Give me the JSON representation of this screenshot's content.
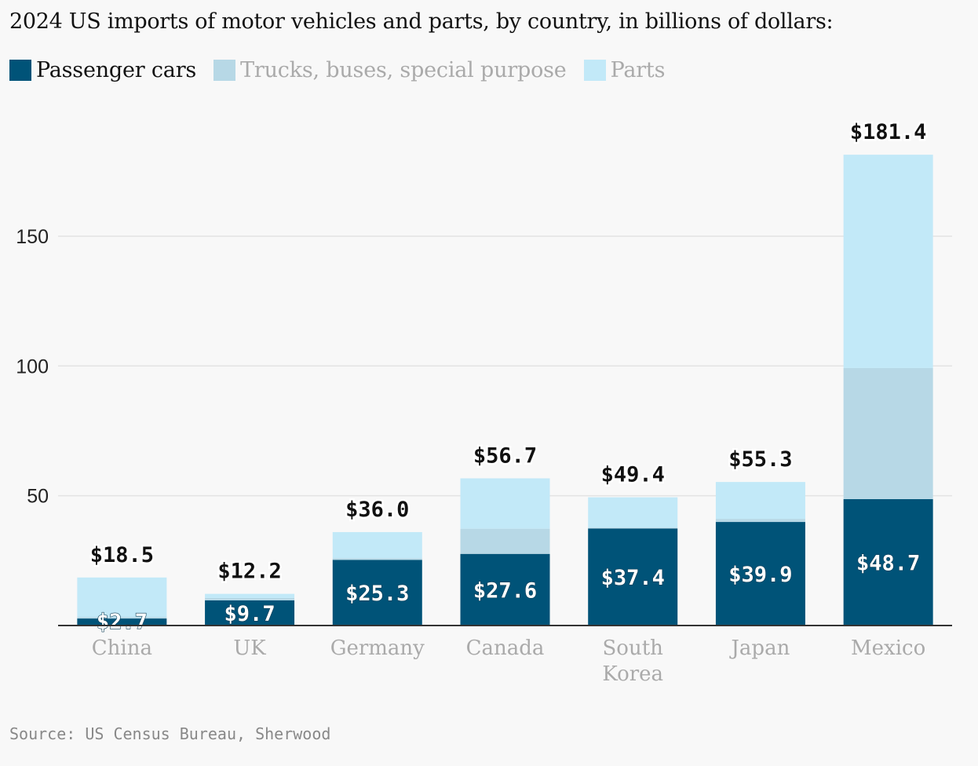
{
  "title": "2024 US imports of motor vehicles and parts, by country, in billions of dollars:",
  "source": "Source: US Census Bureau, Sherwood",
  "chart_data": {
    "type": "bar",
    "stacked": true,
    "categories": [
      "China",
      "UK",
      "Germany",
      "Canada",
      "South Korea",
      "Japan",
      "Mexico"
    ],
    "series": [
      {
        "name": "Passenger cars",
        "color": "#005378",
        "label_color": "#111111",
        "values": [
          2.7,
          9.7,
          25.3,
          27.6,
          37.4,
          39.9,
          48.7
        ]
      },
      {
        "name": "Trucks, buses, special purpose",
        "color": "#b7d8e6",
        "label_color": "#aaaaaa",
        "values": [
          0.6,
          0.9,
          0.6,
          9.7,
          0.3,
          1.2,
          50.5
        ]
      },
      {
        "name": "Parts",
        "color": "#c2e9f8",
        "label_color": "#aaaaaa",
        "values": [
          15.2,
          1.6,
          10.1,
          19.4,
          11.7,
          14.2,
          82.2
        ]
      }
    ],
    "segment_labels": [
      "$2.7",
      "$9.7",
      "$25.3",
      "$27.6",
      "$37.4",
      "$39.9",
      "$48.7"
    ],
    "total_labels": [
      "$18.5",
      "$12.2",
      "$36.0",
      "$56.7",
      "$49.4",
      "$55.3",
      "$181.4"
    ],
    "totals": [
      18.5,
      12.2,
      36.0,
      56.7,
      49.4,
      55.3,
      181.4
    ],
    "y_ticks": [
      50,
      100,
      150
    ],
    "ylim": [
      0,
      200
    ],
    "grid": true,
    "legend_position": "top-left"
  }
}
